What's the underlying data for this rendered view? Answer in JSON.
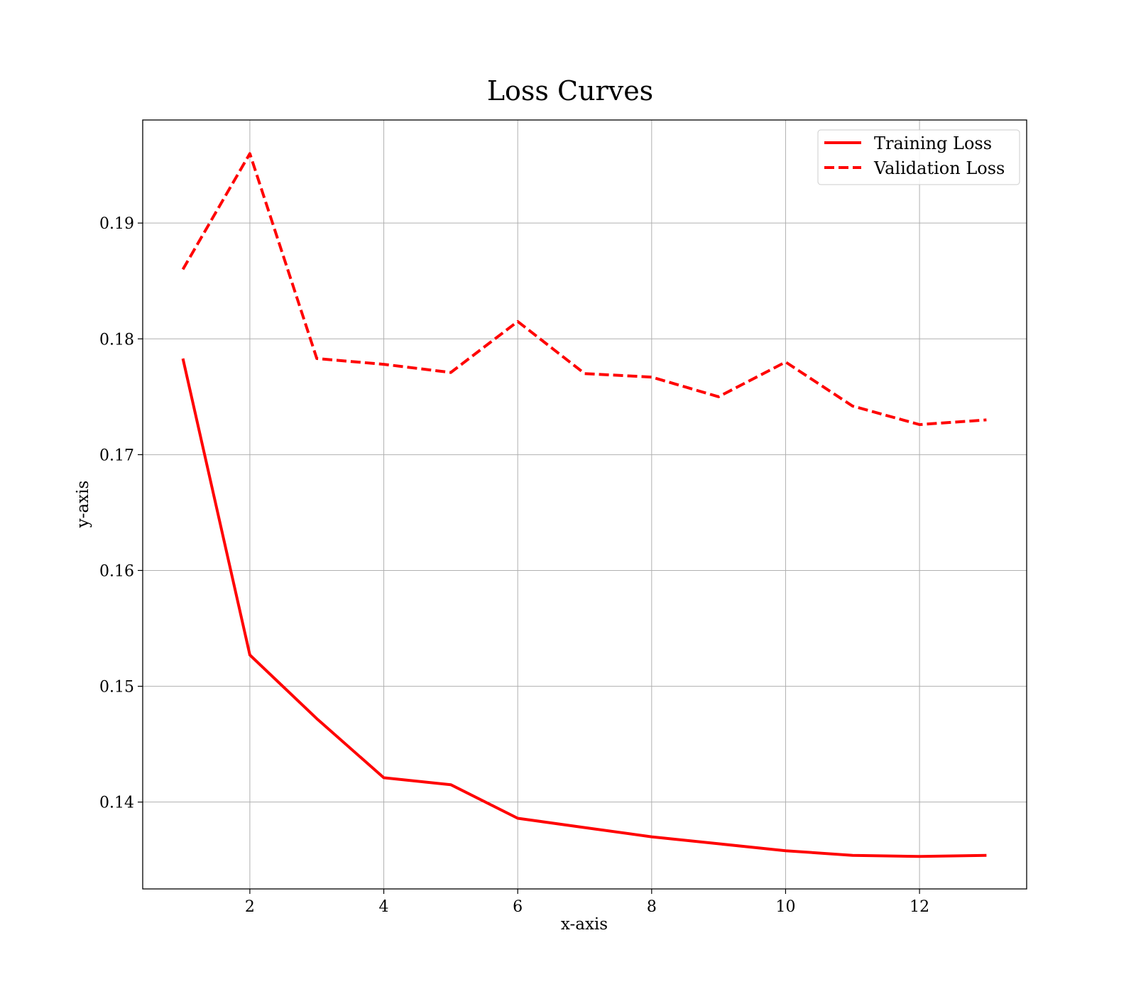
{
  "chart_data": {
    "type": "line",
    "title": "Loss Curves",
    "xlabel": "x-axis",
    "ylabel": "y-axis",
    "xlim": [
      0.4,
      13.6
    ],
    "ylim": [
      0.1325,
      0.1989
    ],
    "xticks": [
      2,
      4,
      6,
      8,
      10,
      12
    ],
    "yticks": [
      0.14,
      0.15,
      0.16,
      0.17,
      0.18,
      0.19
    ],
    "xtick_labels": [
      "2",
      "4",
      "6",
      "8",
      "10",
      "12"
    ],
    "ytick_labels": [
      "0.14",
      "0.15",
      "0.16",
      "0.17",
      "0.18",
      "0.19"
    ],
    "grid": true,
    "legend_position": "top-right",
    "x": [
      1,
      2,
      3,
      4,
      5,
      6,
      7,
      8,
      9,
      10,
      11,
      12,
      13
    ],
    "series": [
      {
        "name": "Training Loss",
        "color": "#ff0000",
        "style": "solid",
        "values": [
          0.1783,
          0.1527,
          0.1472,
          0.1421,
          0.1415,
          0.1386,
          0.1378,
          0.137,
          0.1364,
          0.1358,
          0.1354,
          0.1353,
          0.1354
        ]
      },
      {
        "name": "Validation Loss",
        "color": "#ff0000",
        "style": "dashed",
        "values": [
          0.186,
          0.196,
          0.1783,
          0.1778,
          0.1771,
          0.1815,
          0.177,
          0.1767,
          0.175,
          0.178,
          0.1742,
          0.1726,
          0.173
        ]
      }
    ]
  }
}
